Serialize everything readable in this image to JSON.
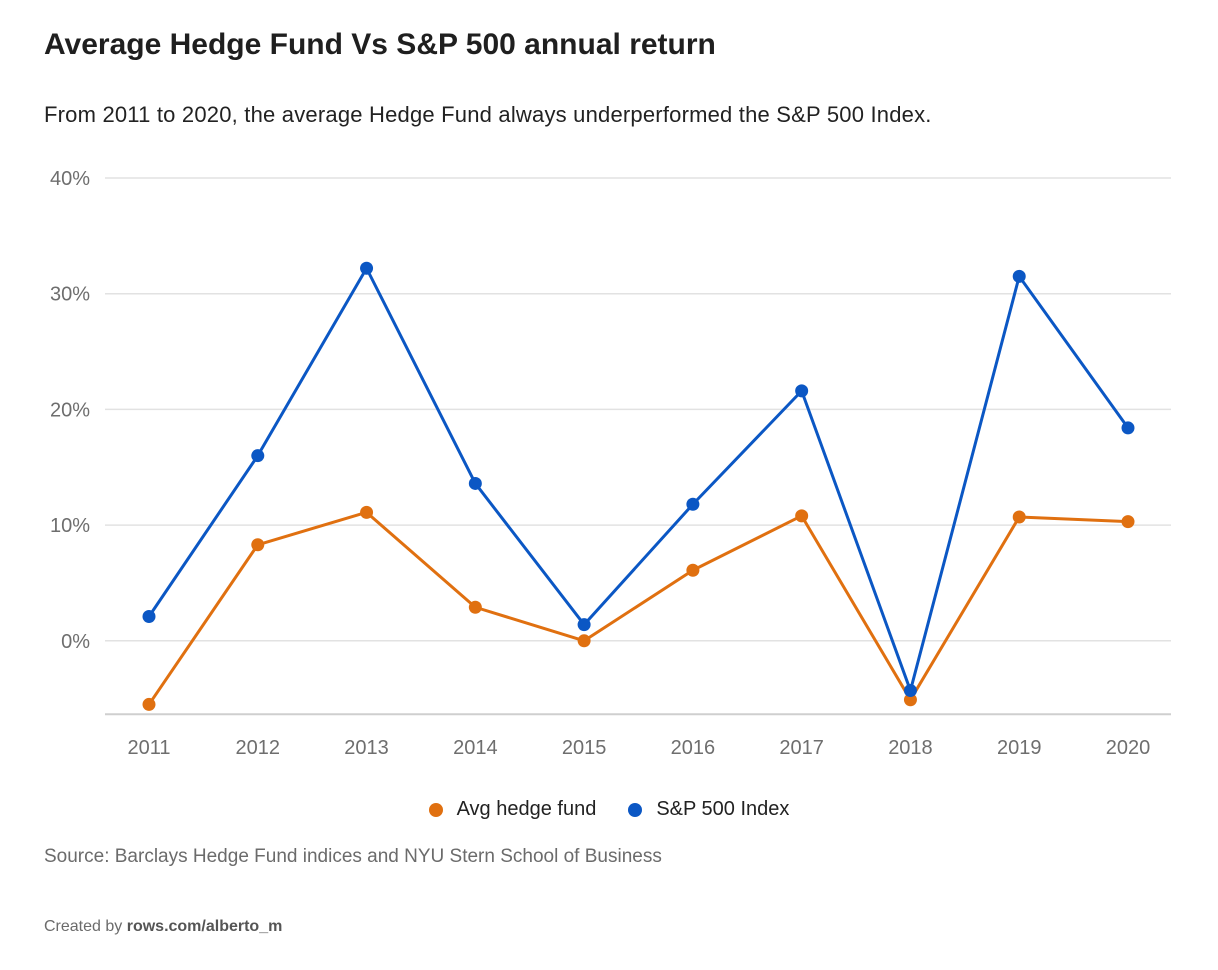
{
  "title": "Average Hedge Fund Vs S&P 500 annual return",
  "subtitle": "From 2011 to 2020, the average Hedge Fund always underperformed the S&P 500 Index.",
  "source": "Source: Barclays Hedge Fund indices and NYU Stern School of Business",
  "credit": {
    "prefix": "Created by",
    "handle": "rows.com/alberto_m"
  },
  "colors": {
    "hedge": "#e07010",
    "sp500": "#0b57c4",
    "grid": "#e2e2e2",
    "axis": "#cfcfcf"
  },
  "chart_data": {
    "type": "line",
    "title": "Average Hedge Fund Vs S&P 500 annual return",
    "categories": [
      "2011",
      "2012",
      "2013",
      "2014",
      "2015",
      "2016",
      "2017",
      "2018",
      "2019",
      "2020"
    ],
    "series": [
      {
        "name": "Avg hedge fund",
        "values": [
          -5.5,
          8.3,
          11.1,
          2.9,
          0.0,
          6.1,
          10.8,
          -5.1,
          10.7,
          10.3
        ]
      },
      {
        "name": "S&P 500 Index",
        "values": [
          2.1,
          16.0,
          32.2,
          13.6,
          1.4,
          11.8,
          21.6,
          -4.3,
          31.5,
          18.4
        ]
      }
    ],
    "ylim": [
      -6,
      40
    ],
    "yticks": [
      0,
      10,
      20,
      30,
      40
    ],
    "ytick_labels": [
      "0%",
      "10%",
      "20%",
      "30%",
      "40%"
    ],
    "xlabel": "",
    "ylabel": "",
    "grid": true,
    "legend": "bottom-center"
  }
}
